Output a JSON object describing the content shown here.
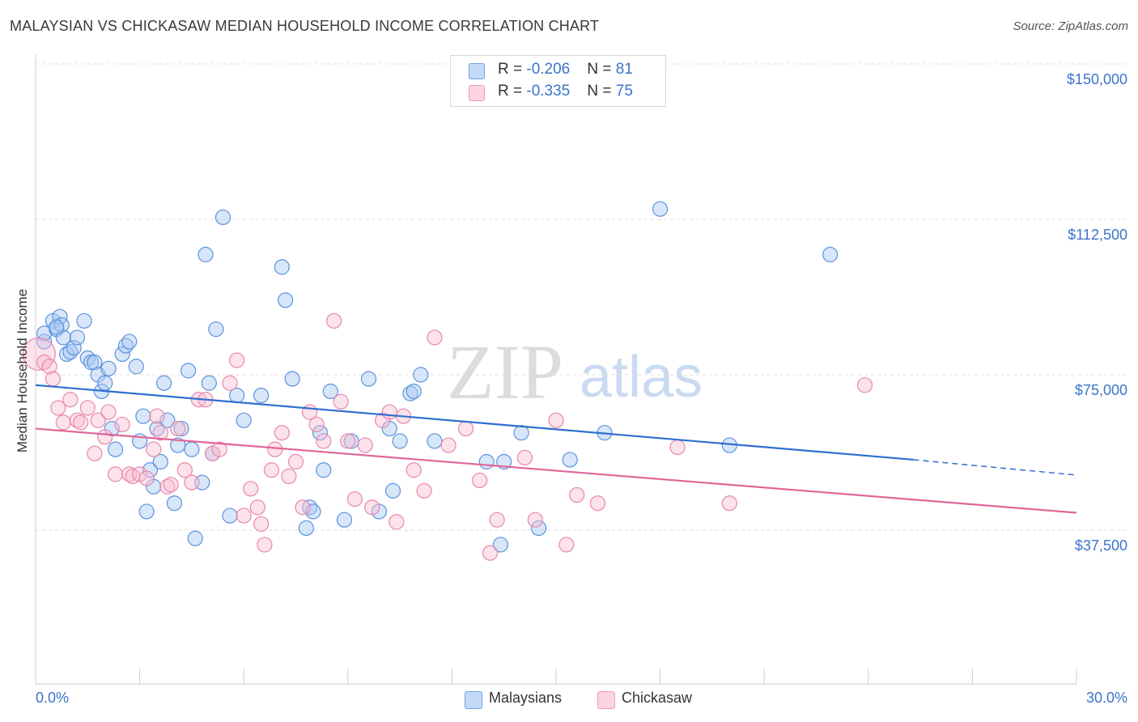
{
  "title": "MALAYSIAN VS CHICKASAW MEDIAN HOUSEHOLD INCOME CORRELATION CHART",
  "source": "Source: ZipAtlas.com",
  "watermark": {
    "zip": "ZIP",
    "atlas": "atlas"
  },
  "legend_top": {
    "rows": [
      {
        "r_label": "R = ",
        "r_value": "-0.206",
        "n_label": "N = ",
        "n_value": "81"
      },
      {
        "r_label": "R = ",
        "r_value": "-0.335",
        "n_label": "N = ",
        "n_value": "75"
      }
    ]
  },
  "chart_data": {
    "type": "scatter",
    "title": "MALAYSIAN VS CHICKASAW MEDIAN HOUSEHOLD INCOME CORRELATION CHART",
    "xlabel": "",
    "ylabel": "Median Household Income",
    "xlim": [
      0,
      30
    ],
    "ylim": [
      15000,
      155000
    ],
    "x_tick_labels": [
      "0.0%",
      "30.0%"
    ],
    "y_ticks": [
      37500,
      75000,
      112500,
      150000
    ],
    "y_tick_labels": [
      "$37,500",
      "$75,000",
      "$112,500",
      "$150,000"
    ],
    "grid": "horizontal dashed",
    "legend_position": "bottom-center",
    "colors": {
      "malaysians": "#6fa3e8",
      "chickasaw": "#f19cbb",
      "malaysians_line": "#2f6fcf",
      "chickasaw_line": "#e0669a",
      "axis_text": "#3b74c9"
    },
    "series": [
      {
        "name": "Malaysians",
        "color": "#6fa3e8",
        "trend": {
          "x0": 0,
          "y0": 72500,
          "x1": 25.3,
          "y1": 54500,
          "dash_to_x": 30,
          "dash_to_y": 50800
        },
        "points": [
          [
            0.25,
            83
          ],
          [
            0.25,
            85
          ],
          [
            0.5,
            88
          ],
          [
            0.6,
            86
          ],
          [
            0.7,
            89
          ],
          [
            0.75,
            87
          ],
          [
            0.8,
            84
          ],
          [
            0.9,
            80
          ],
          [
            1.0,
            80.5
          ],
          [
            1.1,
            81.5
          ],
          [
            1.2,
            84
          ],
          [
            1.4,
            88
          ],
          [
            1.5,
            79
          ],
          [
            1.6,
            78
          ],
          [
            1.7,
            78
          ],
          [
            1.8,
            75
          ],
          [
            1.9,
            71
          ],
          [
            2.0,
            73
          ],
          [
            2.1,
            76.5
          ],
          [
            2.2,
            62
          ],
          [
            2.3,
            57
          ],
          [
            2.5,
            80
          ],
          [
            2.6,
            82
          ],
          [
            2.7,
            83
          ],
          [
            2.9,
            77
          ],
          [
            3.0,
            59
          ],
          [
            3.1,
            65
          ],
          [
            3.2,
            42
          ],
          [
            3.3,
            52
          ],
          [
            3.4,
            48
          ],
          [
            3.5,
            62
          ],
          [
            3.6,
            54
          ],
          [
            3.7,
            73
          ],
          [
            3.8,
            64
          ],
          [
            4.0,
            44
          ],
          [
            4.1,
            58
          ],
          [
            4.2,
            62
          ],
          [
            4.4,
            76
          ],
          [
            4.5,
            57
          ],
          [
            4.6,
            35.5
          ],
          [
            4.8,
            49
          ],
          [
            4.9,
            104
          ],
          [
            5.0,
            73
          ],
          [
            5.1,
            56
          ],
          [
            5.2,
            86
          ],
          [
            5.4,
            113
          ],
          [
            5.6,
            41
          ],
          [
            5.8,
            70
          ],
          [
            6.0,
            64
          ],
          [
            6.5,
            70
          ],
          [
            7.1,
            101
          ],
          [
            7.2,
            93
          ],
          [
            7.4,
            74
          ],
          [
            7.8,
            38
          ],
          [
            7.9,
            43
          ],
          [
            8.0,
            42
          ],
          [
            8.2,
            61
          ],
          [
            8.3,
            52
          ],
          [
            8.5,
            71
          ],
          [
            8.9,
            40
          ],
          [
            9.1,
            59
          ],
          [
            9.6,
            74
          ],
          [
            9.9,
            42
          ],
          [
            10.2,
            62
          ],
          [
            10.3,
            47
          ],
          [
            10.5,
            59
          ],
          [
            10.8,
            70.5
          ],
          [
            10.9,
            71
          ],
          [
            11.1,
            75
          ],
          [
            11.5,
            59
          ],
          [
            13.0,
            54
          ],
          [
            13.4,
            34
          ],
          [
            13.5,
            54
          ],
          [
            14.0,
            61
          ],
          [
            14.5,
            38
          ],
          [
            15.4,
            54.5
          ],
          [
            16.4,
            61
          ],
          [
            18.0,
            115
          ],
          [
            20.0,
            58
          ],
          [
            22.9,
            104
          ],
          [
            0.6,
            86.5
          ]
        ]
      },
      {
        "name": "Chickasaw",
        "color": "#f19cbb",
        "trend": {
          "x0": 0,
          "y0": 62000,
          "x1": 30,
          "y1": 41700
        },
        "points": [
          [
            0.1,
            80
          ],
          [
            0.25,
            78
          ],
          [
            0.4,
            77
          ],
          [
            0.5,
            74
          ],
          [
            0.65,
            67
          ],
          [
            0.8,
            63.5
          ],
          [
            1.0,
            69
          ],
          [
            1.2,
            64
          ],
          [
            1.3,
            63.5
          ],
          [
            1.5,
            67
          ],
          [
            1.7,
            56
          ],
          [
            1.8,
            64
          ],
          [
            2.0,
            60
          ],
          [
            2.1,
            66
          ],
          [
            2.3,
            51
          ],
          [
            2.5,
            63
          ],
          [
            2.7,
            51
          ],
          [
            2.8,
            50.5
          ],
          [
            3.0,
            51
          ],
          [
            3.2,
            50
          ],
          [
            3.4,
            57
          ],
          [
            3.5,
            65
          ],
          [
            3.6,
            61
          ],
          [
            3.8,
            48
          ],
          [
            3.9,
            48.5
          ],
          [
            4.1,
            62
          ],
          [
            4.3,
            52
          ],
          [
            4.5,
            49
          ],
          [
            4.7,
            69
          ],
          [
            4.9,
            69
          ],
          [
            5.1,
            56
          ],
          [
            5.3,
            57
          ],
          [
            5.6,
            73
          ],
          [
            5.8,
            78.5
          ],
          [
            6.0,
            41
          ],
          [
            6.2,
            47.5
          ],
          [
            6.4,
            43
          ],
          [
            6.5,
            39
          ],
          [
            6.6,
            34
          ],
          [
            6.8,
            52
          ],
          [
            6.9,
            57
          ],
          [
            7.1,
            61
          ],
          [
            7.3,
            50.5
          ],
          [
            7.5,
            54
          ],
          [
            7.7,
            43
          ],
          [
            7.9,
            66
          ],
          [
            8.1,
            63
          ],
          [
            8.3,
            59
          ],
          [
            8.6,
            88
          ],
          [
            8.8,
            68.5
          ],
          [
            9.0,
            59
          ],
          [
            9.2,
            45
          ],
          [
            9.5,
            58
          ],
          [
            9.7,
            43
          ],
          [
            10.0,
            64
          ],
          [
            10.2,
            66
          ],
          [
            10.4,
            39.5
          ],
          [
            10.6,
            65
          ],
          [
            10.9,
            52
          ],
          [
            11.2,
            47
          ],
          [
            11.5,
            84
          ],
          [
            11.9,
            58
          ],
          [
            12.4,
            62
          ],
          [
            12.8,
            49.5
          ],
          [
            13.1,
            32
          ],
          [
            13.3,
            40
          ],
          [
            14.1,
            55
          ],
          [
            14.4,
            40
          ],
          [
            15.0,
            64
          ],
          [
            15.3,
            34
          ],
          [
            15.6,
            46
          ],
          [
            16.2,
            44
          ],
          [
            18.5,
            57.5
          ],
          [
            20.0,
            44
          ],
          [
            23.9,
            72.5
          ]
        ]
      }
    ]
  }
}
